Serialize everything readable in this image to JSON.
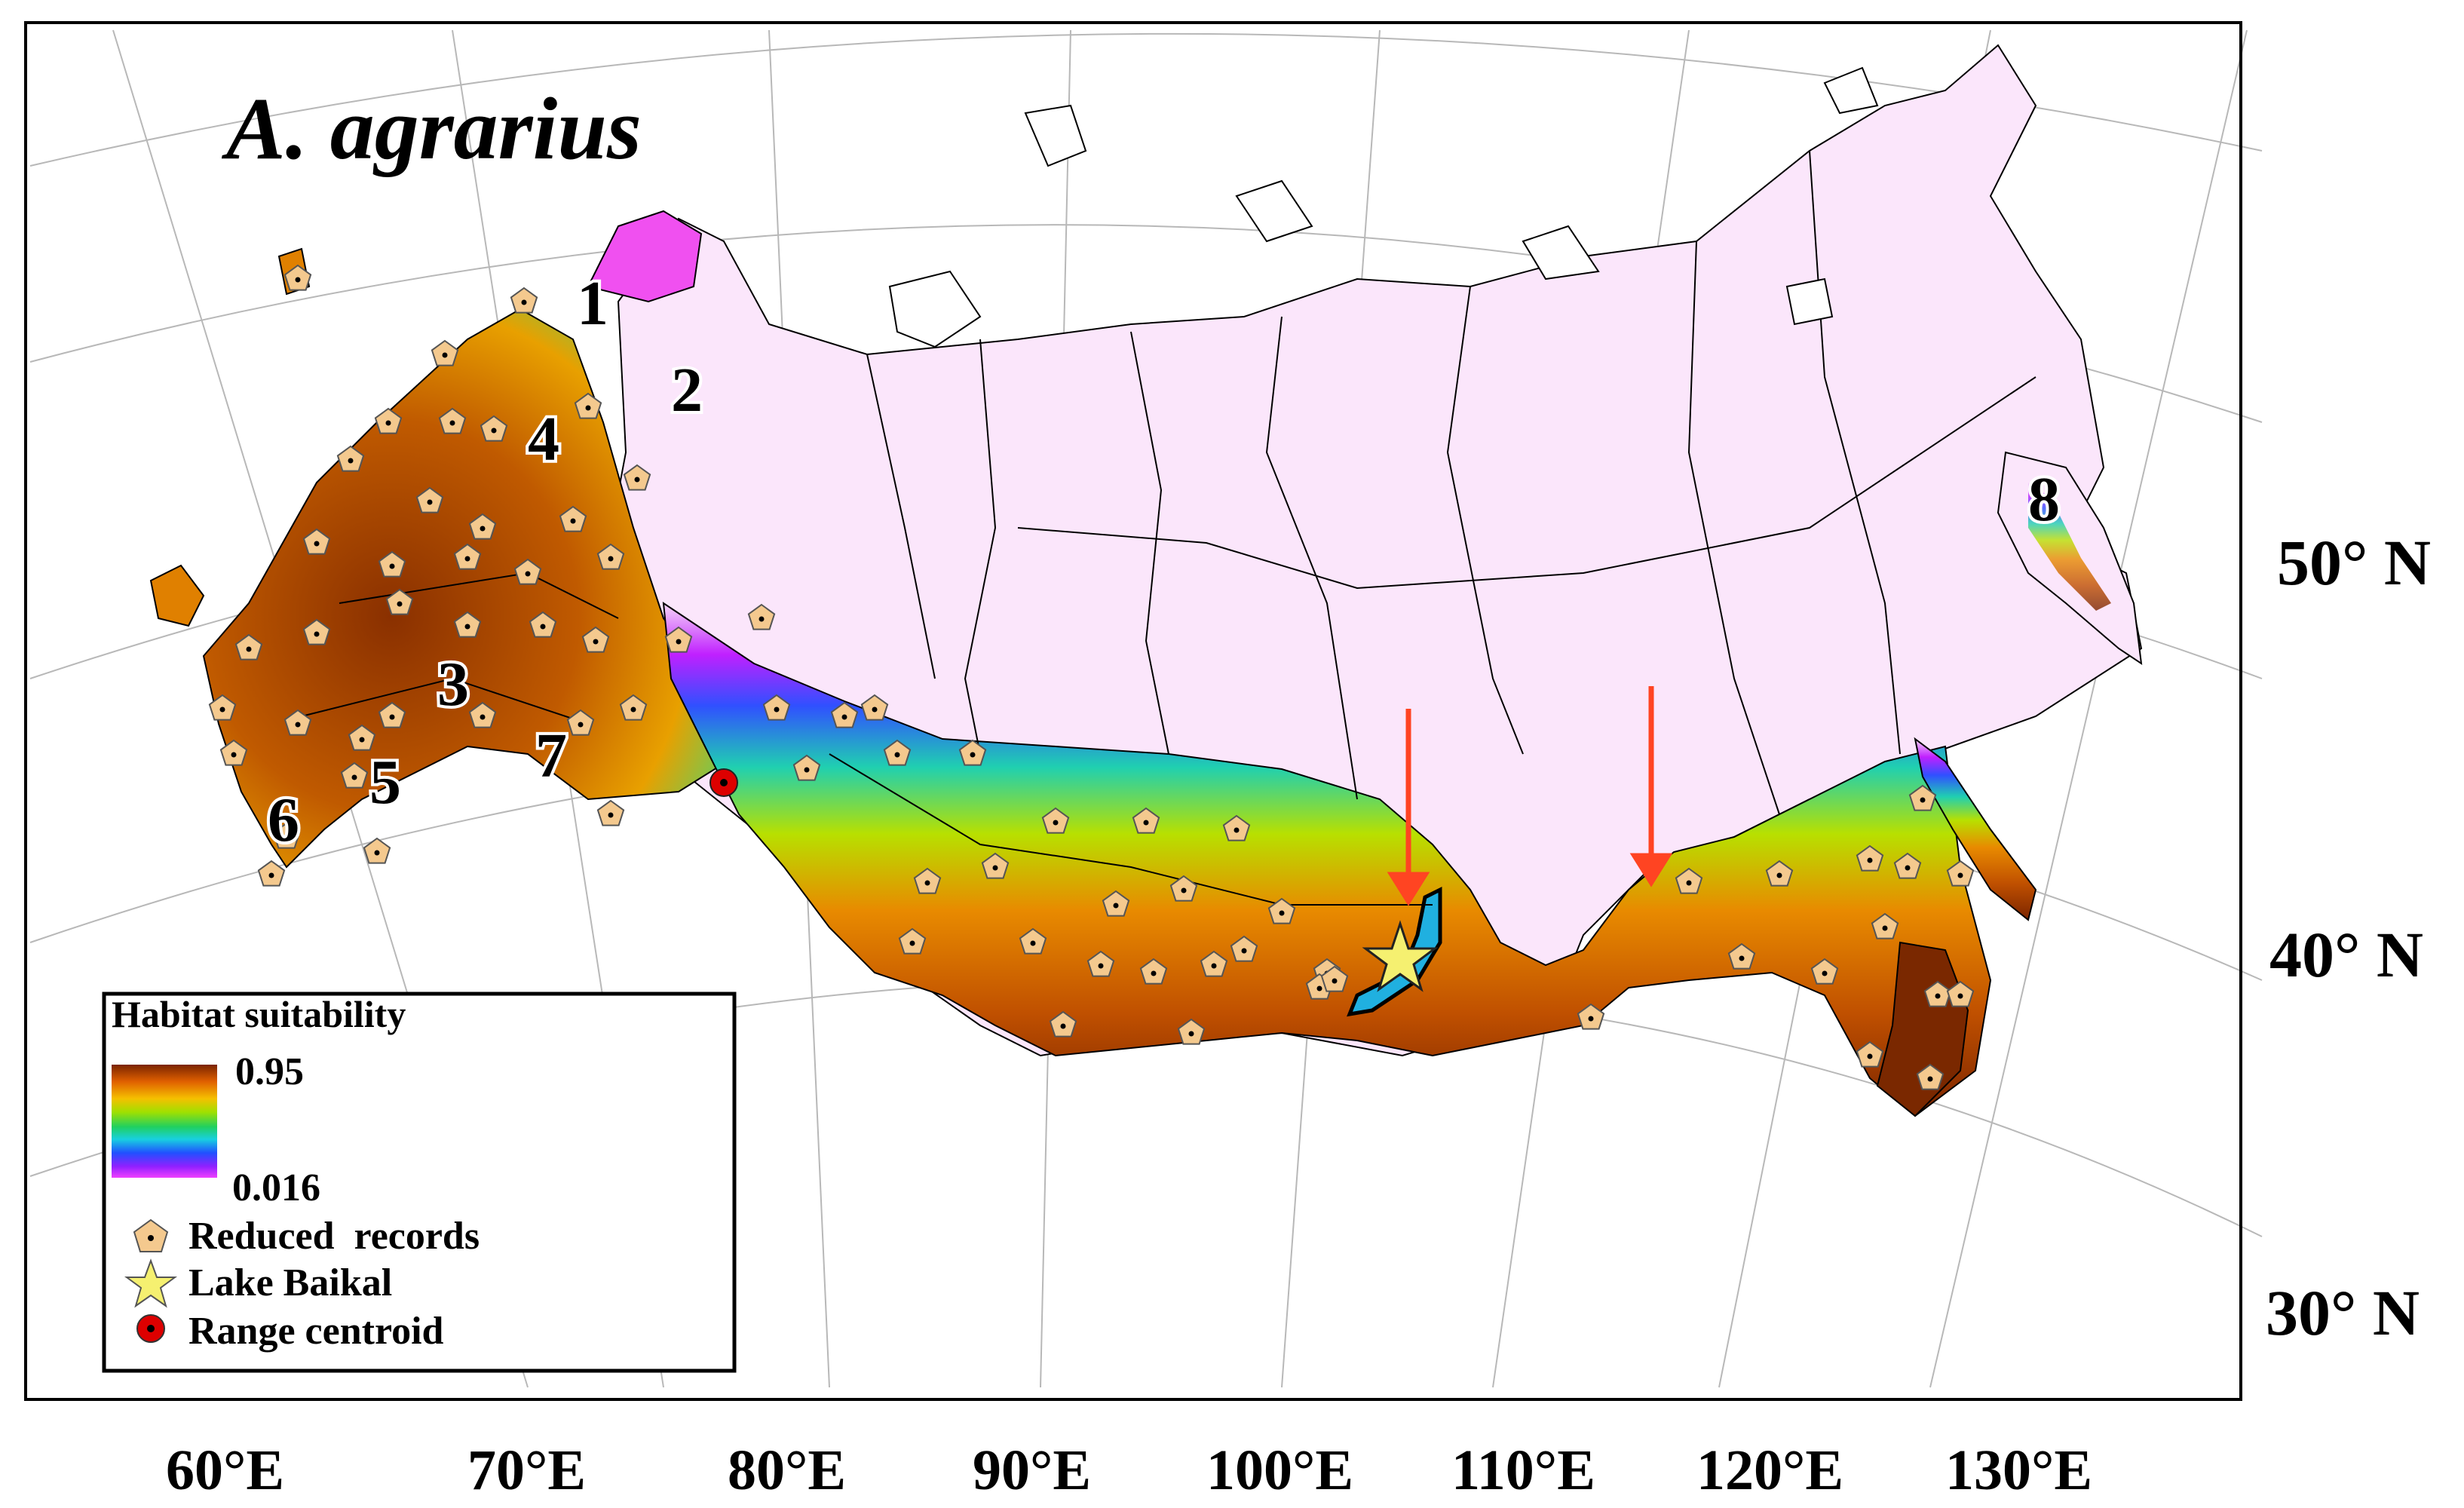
{
  "title": "A. agrarius",
  "legend": {
    "title": "Habitat suitability",
    "max_label": "0.95",
    "min_label": "0.016",
    "items": [
      {
        "label": "Reduced  records",
        "icon": "pentagon-marker-icon"
      },
      {
        "label": "Lake Baikal",
        "icon": "star-icon"
      },
      {
        "label": "Range centroid",
        "icon": "red-octagon-icon"
      }
    ],
    "colors": [
      "#7a2400",
      "#b04a00",
      "#e87a00",
      "#f5c000",
      "#c8e000",
      "#3fd04a",
      "#18d0d0",
      "#1aa0ff",
      "#2040ff",
      "#8020ff",
      "#e020ff",
      "#f8c0ff"
    ]
  },
  "longitude_labels": [
    "60°E",
    "70°E",
    "80°E",
    "90°E",
    "100°E",
    "110°E",
    "120°E",
    "130°E"
  ],
  "latitude_labels": [
    "50° N",
    "40° N",
    "30° N"
  ],
  "region_numbers": [
    "1",
    "2",
    "3",
    "4",
    "5",
    "6",
    "7",
    "8"
  ],
  "colors": {
    "arrow": "#ff4422",
    "low_suitability": "#fbe6fb",
    "star": "#f5f070",
    "centroid": "#dd0000",
    "record_marker": "#f4c98e"
  }
}
